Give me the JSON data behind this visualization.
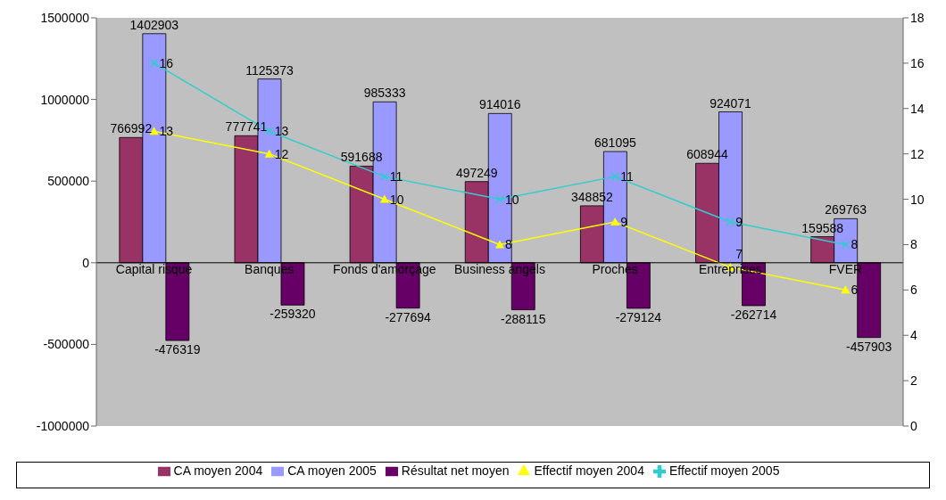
{
  "chart_data": {
    "type": "bar",
    "categories": [
      "Capital risque",
      "Banques",
      "Fonds d'amorçage",
      "Business angels",
      "Proches",
      "Entreprises",
      "FVER"
    ],
    "series": [
      {
        "name": "CA moyen 2004",
        "color": "#993366",
        "values": [
          766992,
          777741,
          591688,
          497249,
          348852,
          608944,
          159588
        ]
      },
      {
        "name": "CA moyen 2005",
        "color": "#9999ff",
        "values": [
          1402903,
          1125373,
          985333,
          914016,
          681095,
          924071,
          269763
        ]
      },
      {
        "name": "Résultat net moyen",
        "color": "#660066",
        "values": [
          -476319,
          -259320,
          -277694,
          -288115,
          -279124,
          -262714,
          -457903
        ]
      },
      {
        "name": "Effectif moyen 2004",
        "type": "line",
        "axis": "y2",
        "marker": "triangle",
        "color": "#ffff00",
        "values": [
          13,
          12,
          10,
          8,
          9,
          7,
          6
        ]
      },
      {
        "name": "Effectif moyen 2005",
        "type": "line",
        "axis": "y2",
        "marker": "cross",
        "color": "#33cccc",
        "values": [
          16,
          13,
          11,
          10,
          11,
          9,
          8
        ]
      }
    ],
    "ylim": [
      -1000000,
      1500000
    ],
    "yticks": [
      -1000000,
      -500000,
      0,
      500000,
      1000000,
      1500000
    ],
    "y2lim": [
      0,
      18
    ],
    "y2ticks": [
      0,
      2,
      4,
      6,
      8,
      10,
      12,
      14,
      16,
      18
    ],
    "data_labels": true,
    "grid": false,
    "legend": "bottom"
  }
}
